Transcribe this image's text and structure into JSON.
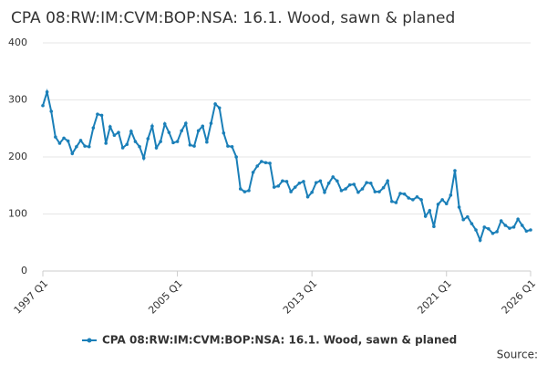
{
  "chart_data": {
    "type": "line",
    "title": "CPA 08:RW:IM:CVM:BOP:NSA: 16.1. Wood, sawn & planed",
    "source": "Source:",
    "categories": [
      "1997 Q1",
      null,
      null,
      null,
      null,
      null,
      null,
      null,
      null,
      null,
      null,
      null,
      null,
      null,
      null,
      null,
      null,
      null,
      null,
      null,
      null,
      null,
      null,
      null,
      null,
      null,
      null,
      null,
      null,
      null,
      null,
      null,
      "2005 Q1",
      null,
      null,
      null,
      null,
      null,
      null,
      null,
      null,
      null,
      null,
      null,
      null,
      null,
      null,
      null,
      null,
      null,
      null,
      null,
      null,
      null,
      null,
      null,
      null,
      null,
      null,
      null,
      null,
      null,
      null,
      null,
      "2013 Q1",
      null,
      null,
      null,
      null,
      null,
      null,
      null,
      null,
      null,
      null,
      null,
      null,
      null,
      null,
      null,
      null,
      null,
      null,
      null,
      null,
      null,
      null,
      null,
      null,
      null,
      null,
      null,
      null,
      null,
      null,
      null,
      "2021 Q1",
      null,
      null,
      null,
      null,
      null,
      null,
      null,
      null,
      null,
      null,
      null,
      null,
      null,
      null,
      null,
      null,
      null,
      null,
      null,
      "2026 Q1"
    ],
    "series": [
      {
        "name": "CPA 08:RW:IM:CVM:BOP:NSA: 16.1. Wood, sawn & planed",
        "color": "#1a7fb8",
        "values": [
          290,
          314,
          280,
          235,
          224,
          233,
          228,
          206,
          218,
          229,
          219,
          218,
          251,
          275,
          273,
          224,
          253,
          238,
          243,
          216,
          222,
          245,
          227,
          218,
          198,
          232,
          254,
          216,
          227,
          258,
          243,
          225,
          227,
          246,
          259,
          221,
          219,
          246,
          254,
          226,
          259,
          293,
          286,
          242,
          219,
          218,
          200,
          144,
          139,
          141,
          173,
          184,
          192,
          190,
          189,
          147,
          149,
          158,
          157,
          139,
          147,
          154,
          157,
          130,
          138,
          155,
          158,
          138,
          154,
          165,
          158,
          141,
          144,
          151,
          152,
          138,
          144,
          155,
          154,
          139,
          139,
          146,
          158,
          122,
          120,
          136,
          135,
          128,
          125,
          130,
          125,
          96,
          106,
          78,
          117,
          125,
          118,
          133,
          176,
          112,
          90,
          95,
          83,
          72,
          54,
          77,
          74,
          66,
          69,
          88,
          80,
          75,
          77,
          91,
          80,
          70,
          72
        ]
      }
    ],
    "ylim": [
      0,
      400
    ],
    "yticks": [
      0,
      100,
      200,
      300,
      400
    ],
    "grid": true,
    "legend": "bottom"
  }
}
